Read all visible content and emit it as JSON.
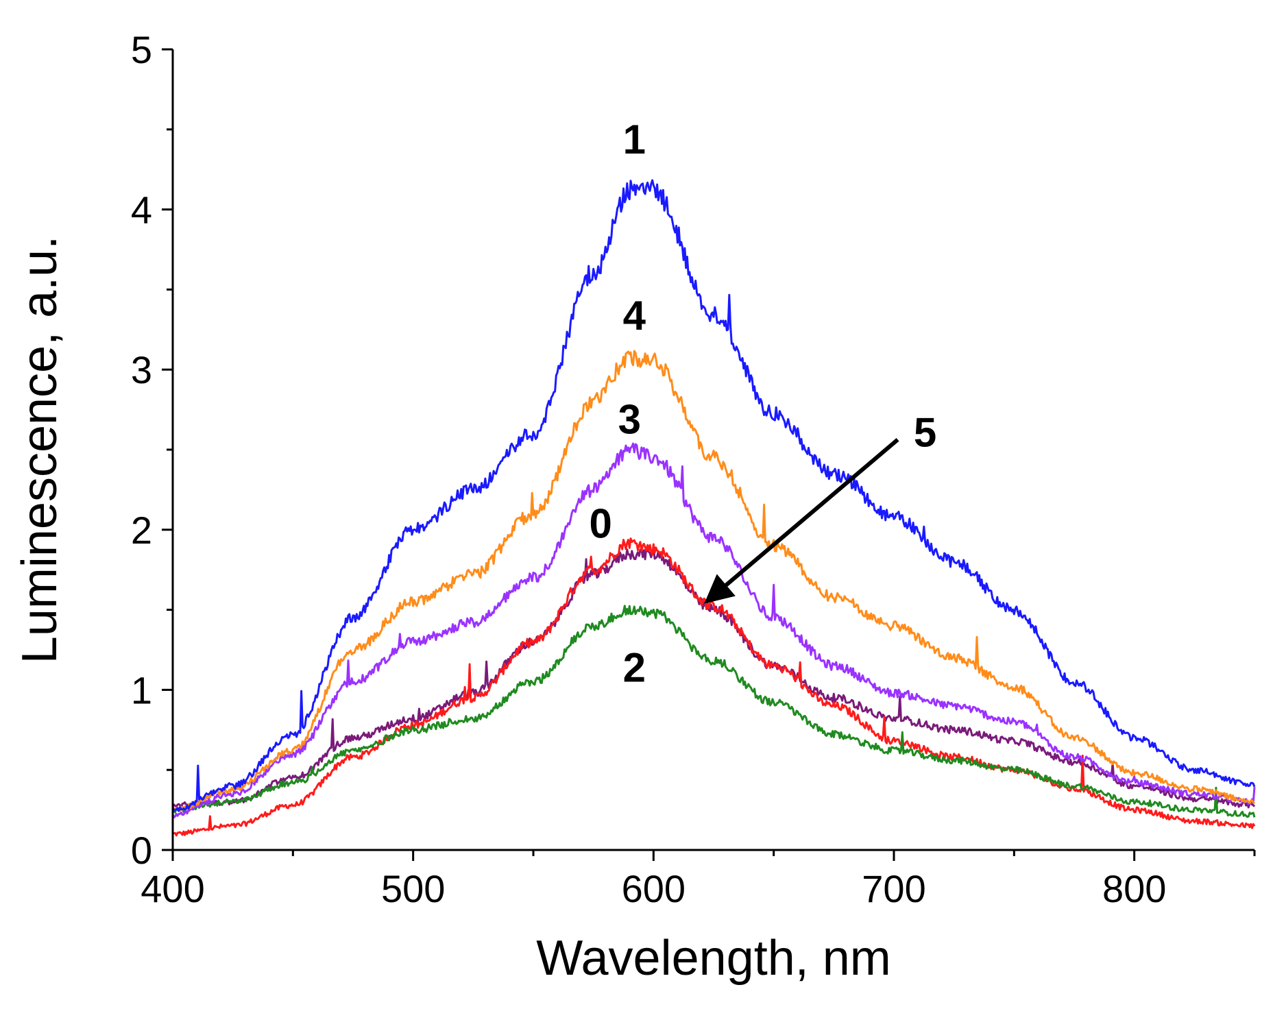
{
  "chart_data": {
    "type": "line",
    "title": "",
    "xlabel": "Wavelength, nm",
    "ylabel": "Luminescence, a.u.",
    "xlim": [
      400,
      850
    ],
    "ylim": [
      0,
      5
    ],
    "xticks": [
      400,
      500,
      600,
      700,
      800
    ],
    "yticks": [
      0,
      1,
      2,
      3,
      4,
      5
    ],
    "grid": false,
    "legend": "none",
    "x": [
      400,
      425,
      450,
      475,
      500,
      525,
      550,
      575,
      590,
      600,
      625,
      650,
      675,
      700,
      725,
      750,
      775,
      800,
      825,
      850
    ],
    "series": [
      {
        "name": "0",
        "label": "0",
        "color": "#ff1a1a",
        "values": [
          0.1,
          0.15,
          0.28,
          0.58,
          0.78,
          0.95,
          1.3,
          1.75,
          1.92,
          1.88,
          1.52,
          1.15,
          0.9,
          0.68,
          0.58,
          0.5,
          0.38,
          0.25,
          0.18,
          0.15
        ]
      },
      {
        "name": "1",
        "label": "1",
        "color": "#1a1aff",
        "values": [
          0.25,
          0.4,
          0.72,
          1.45,
          2.0,
          2.25,
          2.6,
          3.6,
          4.12,
          4.12,
          3.35,
          2.72,
          2.35,
          2.08,
          1.8,
          1.5,
          1.05,
          0.7,
          0.5,
          0.4
        ]
      },
      {
        "name": "2",
        "label": "2",
        "color": "#1f8a1f",
        "values": [
          0.25,
          0.3,
          0.42,
          0.62,
          0.75,
          0.82,
          1.05,
          1.4,
          1.5,
          1.48,
          1.18,
          0.92,
          0.72,
          0.62,
          0.56,
          0.5,
          0.4,
          0.3,
          0.25,
          0.22
        ]
      },
      {
        "name": "3",
        "label": "3",
        "color": "#9a32ff",
        "values": [
          0.22,
          0.35,
          0.6,
          1.05,
          1.3,
          1.42,
          1.7,
          2.25,
          2.5,
          2.45,
          1.95,
          1.45,
          1.15,
          0.98,
          0.9,
          0.8,
          0.58,
          0.42,
          0.35,
          0.3
        ]
      },
      {
        "name": "4",
        "label": "4",
        "color": "#ff8c1a",
        "values": [
          0.25,
          0.38,
          0.62,
          1.25,
          1.55,
          1.72,
          2.1,
          2.8,
          3.08,
          3.05,
          2.45,
          1.9,
          1.58,
          1.4,
          1.2,
          1.02,
          0.7,
          0.48,
          0.38,
          0.3
        ]
      },
      {
        "name": "5",
        "label": "5",
        "color": "#7a1a7a",
        "values": [
          0.28,
          0.3,
          0.45,
          0.7,
          0.82,
          0.98,
          1.3,
          1.72,
          1.85,
          1.85,
          1.5,
          1.15,
          0.95,
          0.82,
          0.75,
          0.68,
          0.55,
          0.4,
          0.32,
          0.28
        ]
      }
    ],
    "annotations": [
      {
        "text": "1",
        "x": 592,
        "y": 4.35
      },
      {
        "text": "4",
        "x": 592,
        "y": 3.25
      },
      {
        "text": "3",
        "x": 590,
        "y": 2.6
      },
      {
        "text": "0",
        "x": 578,
        "y": 1.95
      },
      {
        "text": "2",
        "x": 592,
        "y": 1.05
      },
      {
        "text": "5",
        "x": 713,
        "y": 2.52,
        "arrow_to": [
          622,
          1.55
        ]
      }
    ]
  }
}
